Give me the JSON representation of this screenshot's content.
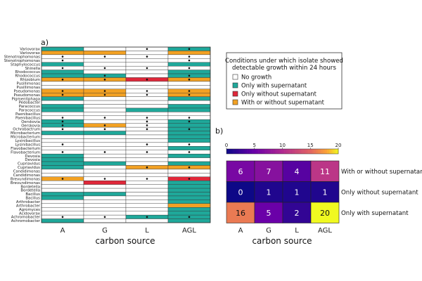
{
  "chart_data": [
    {
      "type": "heatmap",
      "panel_label": "a)",
      "xlabel": "carbon source",
      "columns": [
        "A",
        "G",
        "L",
        "AGL"
      ],
      "categories": {
        "N": "No growth",
        "S": "Only with supernatant",
        "W": "Only without supernatant",
        "B": "With or without supernatant"
      },
      "colors": {
        "N": "#ffffff",
        "S": "#1fa89a",
        "W": "#e0283a",
        "B": "#f2a123"
      },
      "legend_title": [
        "Conditions under which isolate showed",
        "detectable growth within 24 hours"
      ],
      "legend_order": [
        "N",
        "S",
        "W",
        "B"
      ],
      "rows": [
        {
          "label": "Variovorax",
          "cells": [
            "S",
            "N",
            "N",
            "S"
          ],
          "dots": [
            0,
            0,
            1,
            1
          ]
        },
        {
          "label": "Variovorax",
          "cells": [
            "B",
            "B",
            "N",
            "B"
          ],
          "dots": [
            0,
            0,
            0,
            0
          ]
        },
        {
          "label": "Stenotrophomonas",
          "cells": [
            "N",
            "N",
            "N",
            "N"
          ],
          "dots": [
            1,
            1,
            1,
            1
          ]
        },
        {
          "label": "Stenotrophomonas",
          "cells": [
            "N",
            "N",
            "N",
            "N"
          ],
          "dots": [
            1,
            0,
            0,
            1
          ]
        },
        {
          "label": "Staphylococcus",
          "cells": [
            "S",
            "N",
            "N",
            "S"
          ],
          "dots": [
            0,
            0,
            0,
            0
          ]
        },
        {
          "label": "Shinella",
          "cells": [
            "N",
            "N",
            "N",
            "N"
          ],
          "dots": [
            1,
            1,
            1,
            1
          ]
        },
        {
          "label": "Rhodococcus",
          "cells": [
            "S",
            "N",
            "N",
            "S"
          ],
          "dots": [
            0,
            0,
            0,
            0
          ]
        },
        {
          "label": "Rhodococcus",
          "cells": [
            "S",
            "S",
            "N",
            "S"
          ],
          "dots": [
            0,
            1,
            0,
            1
          ]
        },
        {
          "label": "Rhizobium",
          "cells": [
            "B",
            "B",
            "W",
            "B"
          ],
          "dots": [
            1,
            1,
            1,
            1
          ]
        },
        {
          "label": "Pusillimonas",
          "cells": [
            "N",
            "N",
            "N",
            "N"
          ],
          "dots": [
            0,
            0,
            0,
            0
          ]
        },
        {
          "label": "Pusillimonas",
          "cells": [
            "N",
            "N",
            "N",
            "N"
          ],
          "dots": [
            0,
            0,
            0,
            0
          ]
        },
        {
          "label": "Pseudomonas",
          "cells": [
            "B",
            "B",
            "N",
            "B"
          ],
          "dots": [
            1,
            1,
            1,
            1
          ]
        },
        {
          "label": "Pseudomonas",
          "cells": [
            "B",
            "B",
            "N",
            "B"
          ],
          "dots": [
            1,
            1,
            1,
            1
          ]
        },
        {
          "label": "Pigmentiphaga",
          "cells": [
            "S",
            "N",
            "N",
            "S"
          ],
          "dots": [
            0,
            0,
            0,
            0
          ]
        },
        {
          "label": "Pedobacter",
          "cells": [
            "N",
            "N",
            "N",
            "N"
          ],
          "dots": [
            0,
            0,
            0,
            0
          ]
        },
        {
          "label": "Paracoccus",
          "cells": [
            "S",
            "N",
            "N",
            "S"
          ],
          "dots": [
            0,
            0,
            0,
            0
          ]
        },
        {
          "label": "Paracoccus",
          "cells": [
            "S",
            "N",
            "S",
            "S"
          ],
          "dots": [
            0,
            0,
            0,
            0
          ]
        },
        {
          "label": "Paenibacillus",
          "cells": [
            "N",
            "N",
            "N",
            "N"
          ],
          "dots": [
            0,
            0,
            0,
            0
          ]
        },
        {
          "label": "Paenibacillus",
          "cells": [
            "N",
            "N",
            "N",
            "N"
          ],
          "dots": [
            1,
            1,
            1,
            1
          ]
        },
        {
          "label": "Oerskovia",
          "cells": [
            "S",
            "N",
            "N",
            "S"
          ],
          "dots": [
            1,
            0,
            1,
            1
          ]
        },
        {
          "label": "Oerskovia",
          "cells": [
            "S",
            "B",
            "N",
            "S"
          ],
          "dots": [
            1,
            1,
            1,
            0
          ]
        },
        {
          "label": "Ochrobactrum",
          "cells": [
            "N",
            "N",
            "N",
            "S"
          ],
          "dots": [
            1,
            1,
            1,
            1
          ]
        },
        {
          "label": "Microbacterium",
          "cells": [
            "S",
            "S",
            "N",
            "S"
          ],
          "dots": [
            0,
            0,
            0,
            0
          ]
        },
        {
          "label": "Microbacterium",
          "cells": [
            "N",
            "N",
            "N",
            "S"
          ],
          "dots": [
            0,
            0,
            0,
            0
          ]
        },
        {
          "label": "Lysinibacillus",
          "cells": [
            "N",
            "N",
            "N",
            "S"
          ],
          "dots": [
            0,
            0,
            0,
            0
          ]
        },
        {
          "label": "Lysinibacillus",
          "cells": [
            "N",
            "N",
            "N",
            "N"
          ],
          "dots": [
            1,
            0,
            1,
            1
          ]
        },
        {
          "label": "Flavobacterium",
          "cells": [
            "N",
            "N",
            "N",
            "S"
          ],
          "dots": [
            0,
            0,
            0,
            0
          ]
        },
        {
          "label": "Flavobacterium",
          "cells": [
            "N",
            "N",
            "N",
            "N"
          ],
          "dots": [
            1,
            1,
            1,
            1
          ]
        },
        {
          "label": "Devosia",
          "cells": [
            "S",
            "N",
            "N",
            "S"
          ],
          "dots": [
            0,
            0,
            0,
            0
          ]
        },
        {
          "label": "Devosia",
          "cells": [
            "S",
            "N",
            "N",
            "N"
          ],
          "dots": [
            0,
            0,
            0,
            0
          ]
        },
        {
          "label": "Cupriavidus",
          "cells": [
            "S",
            "S",
            "N",
            "S"
          ],
          "dots": [
            0,
            0,
            0,
            0
          ]
        },
        {
          "label": "Cupriavidus",
          "cells": [
            "S",
            "N",
            "B",
            "B"
          ],
          "dots": [
            0,
            0,
            1,
            1
          ]
        },
        {
          "label": "Candidimonas",
          "cells": [
            "N",
            "N",
            "N",
            "N"
          ],
          "dots": [
            0,
            0,
            0,
            0
          ]
        },
        {
          "label": "Candidimonas",
          "cells": [
            "N",
            "N",
            "N",
            "N"
          ],
          "dots": [
            0,
            0,
            0,
            0
          ]
        },
        {
          "label": "Brevundimonas",
          "cells": [
            "B",
            "N",
            "N",
            "W"
          ],
          "dots": [
            1,
            1,
            1,
            1
          ]
        },
        {
          "label": "Brevundimonas",
          "cells": [
            "N",
            "W",
            "N",
            "S"
          ],
          "dots": [
            0,
            0,
            0,
            0
          ]
        },
        {
          "label": "Bordetella",
          "cells": [
            "N",
            "N",
            "N",
            "S"
          ],
          "dots": [
            0,
            0,
            0,
            0
          ]
        },
        {
          "label": "Bordetella",
          "cells": [
            "N",
            "N",
            "N",
            "S"
          ],
          "dots": [
            0,
            0,
            0,
            0
          ]
        },
        {
          "label": "Bacillus",
          "cells": [
            "S",
            "S",
            "N",
            "S"
          ],
          "dots": [
            0,
            0,
            0,
            0
          ]
        },
        {
          "label": "Bacillus",
          "cells": [
            "S",
            "N",
            "N",
            "S"
          ],
          "dots": [
            0,
            0,
            0,
            0
          ]
        },
        {
          "label": "Arthrobacter",
          "cells": [
            "N",
            "N",
            "N",
            "S"
          ],
          "dots": [
            0,
            0,
            0,
            0
          ]
        },
        {
          "label": "Arthrobacter",
          "cells": [
            "N",
            "N",
            "N",
            "B"
          ],
          "dots": [
            0,
            0,
            0,
            0
          ]
        },
        {
          "label": "Agromyces",
          "cells": [
            "N",
            "N",
            "N",
            "S"
          ],
          "dots": [
            0,
            0,
            0,
            0
          ]
        },
        {
          "label": "Acidovorax",
          "cells": [
            "N",
            "N",
            "N",
            "S"
          ],
          "dots": [
            0,
            0,
            0,
            0
          ]
        },
        {
          "label": "Achromobacter",
          "cells": [
            "N",
            "N",
            "S",
            "S"
          ],
          "dots": [
            1,
            1,
            1,
            1
          ]
        },
        {
          "label": "Achromobacter",
          "cells": [
            "S",
            "N",
            "N",
            "S"
          ],
          "dots": [
            0,
            0,
            0,
            0
          ]
        }
      ]
    },
    {
      "type": "heatmap",
      "panel_label": "b)",
      "xlabel": "carbon source",
      "columns": [
        "A",
        "G",
        "L",
        "AGL"
      ],
      "rows": [
        "With or without supernatant",
        "Only without supernatant",
        "Only with supernatant"
      ],
      "values": [
        [
          6,
          7,
          4,
          11
        ],
        [
          0,
          1,
          1,
          1
        ],
        [
          16,
          5,
          2,
          20
        ]
      ],
      "colorbar": {
        "min": 0,
        "max": 20,
        "ticks": [
          0,
          5,
          10,
          15,
          20
        ],
        "palette": "plasma"
      }
    }
  ]
}
